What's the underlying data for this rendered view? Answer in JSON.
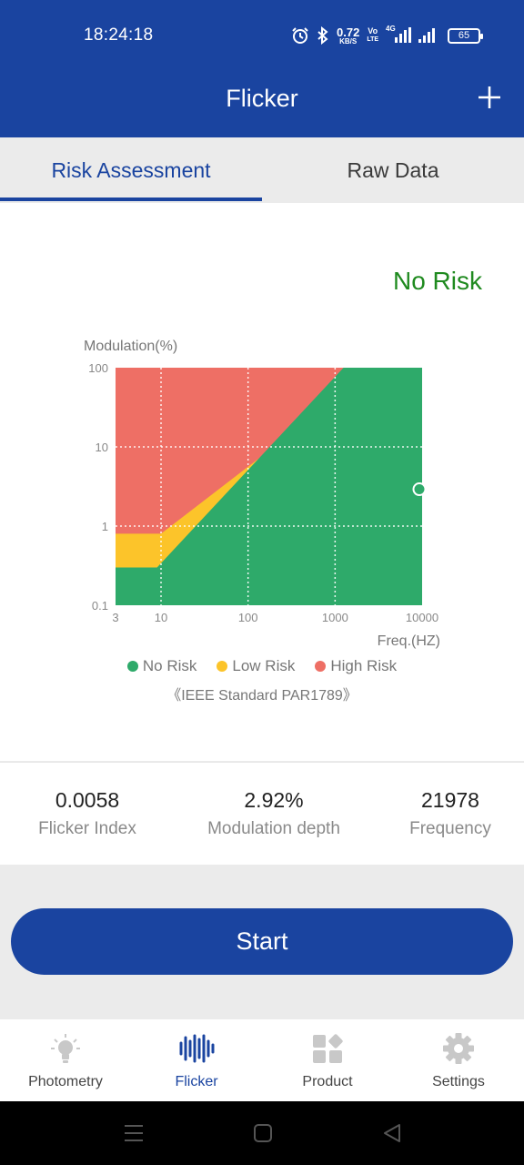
{
  "status_bar": {
    "time": "18:24:18",
    "net_speed_value": "0.72",
    "net_speed_unit": "KB/S",
    "volte_top": "Vo",
    "volte_bottom": "LTE",
    "network": "4G",
    "battery": "65"
  },
  "app_bar": {
    "title": "Flicker",
    "add_icon": "plus-icon"
  },
  "tabs": [
    {
      "label": "Risk Assessment",
      "active": true
    },
    {
      "label": "Raw Data",
      "active": false
    }
  ],
  "risk": {
    "status": "No Risk",
    "status_color": "#1f8a1f"
  },
  "legend": {
    "items": [
      {
        "label": "No Risk",
        "color": "#2eaa6a"
      },
      {
        "label": "Low Risk",
        "color": "#fcc42a"
      },
      {
        "label": "High Risk",
        "color": "#ee6f65"
      }
    ],
    "standard": "《IEEE Standard PAR1789》"
  },
  "chart_data": {
    "type": "area",
    "title": "",
    "ylabel": "Modulation(%)",
    "xlabel": "Freq.(HZ)",
    "x_scale": "log",
    "y_scale": "log",
    "xlim": [
      3,
      10000
    ],
    "ylim": [
      0.1,
      100
    ],
    "x_ticks": [
      {
        "value": 3,
        "label": "3"
      },
      {
        "value": 10,
        "label": "10"
      },
      {
        "value": 100,
        "label": "100"
      },
      {
        "value": 1000,
        "label": "1000"
      },
      {
        "value": 10000,
        "label": "10000"
      }
    ],
    "y_ticks": [
      {
        "value": 100,
        "label": "100"
      },
      {
        "value": 10,
        "label": "10"
      },
      {
        "value": 1,
        "label": "1"
      },
      {
        "value": 0.1,
        "label": "0.1"
      }
    ],
    "grid": true,
    "regions": [
      {
        "name": "High Risk",
        "color": "#ee6f65"
      },
      {
        "name": "Low Risk",
        "color": "#fcc42a",
        "boundary": [
          [
            3,
            0.8
          ],
          [
            10,
            0.8
          ],
          [
            3000,
            100
          ]
        ]
      },
      {
        "name": "No Risk",
        "color": "#2eaa6a",
        "boundary": [
          [
            3,
            0.3
          ],
          [
            9,
            0.3
          ],
          [
            1250,
            100
          ]
        ]
      }
    ],
    "measurement": {
      "frequency": 21978,
      "modulation": 2.92
    }
  },
  "stats": [
    {
      "value": "0.0058",
      "label": "Flicker Index"
    },
    {
      "value": "2.92%",
      "label": "Modulation depth"
    },
    {
      "value": "21978",
      "label": "Frequency"
    }
  ],
  "start_button": {
    "label": "Start"
  },
  "bottom_nav": [
    {
      "label": "Photometry",
      "icon": "lightbulb-icon",
      "active": false
    },
    {
      "label": "Flicker",
      "icon": "waveform-icon",
      "active": true
    },
    {
      "label": "Product",
      "icon": "grid-icon",
      "active": false
    },
    {
      "label": "Settings",
      "icon": "gear-icon",
      "active": false
    }
  ],
  "colors": {
    "primary": "#1a44a0",
    "inactive_icon": "#bfbfbf"
  }
}
